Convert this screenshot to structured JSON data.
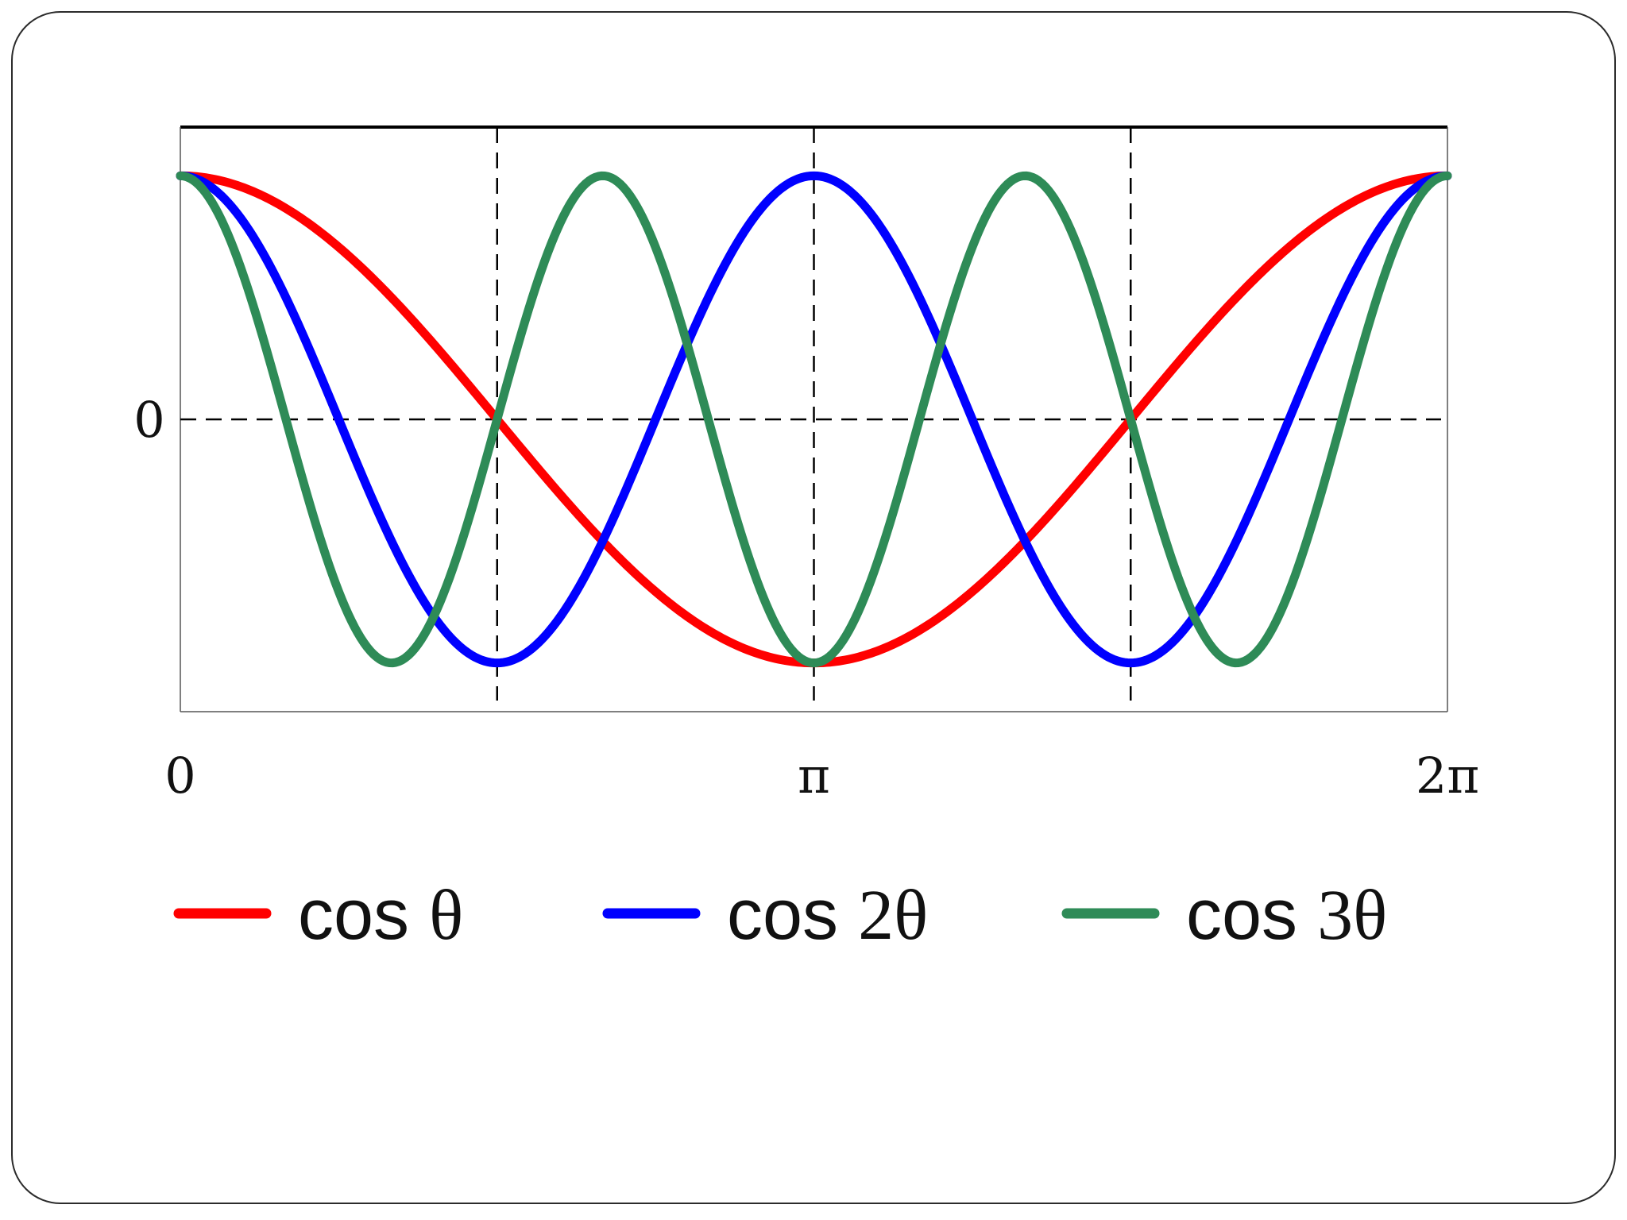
{
  "chart_data": {
    "type": "line",
    "title": "",
    "xlabel": "",
    "ylabel": "",
    "xlim": [
      0,
      6.283185
    ],
    "ylim": [
      -1.2,
      1.2
    ],
    "x_ticks": [
      {
        "value": 0,
        "label": "0"
      },
      {
        "value": 3.141593,
        "label": "π"
      },
      {
        "value": 6.283185,
        "label": "2π"
      }
    ],
    "y_ticks": [
      {
        "value": 0,
        "label": "0"
      }
    ],
    "reference_lines": {
      "horizontal_dashed": [
        0
      ],
      "vertical_dashed": [
        1.570796,
        3.141593,
        4.712389
      ],
      "horizontal_solid_top": 1.2
    },
    "grid": false,
    "legend_position": "bottom",
    "series": [
      {
        "name": "cos θ",
        "legend_prefix": "cos ",
        "legend_suffix": "θ",
        "frequency": 1,
        "color": "#ff0000"
      },
      {
        "name": "cos 2θ",
        "legend_prefix": "cos ",
        "legend_suffix": "2θ",
        "frequency": 2,
        "color": "#0000ff"
      },
      {
        "name": "cos 3θ",
        "legend_prefix": "cos ",
        "legend_suffix": "3θ",
        "frequency": 3,
        "color": "#2e8b57"
      }
    ]
  }
}
